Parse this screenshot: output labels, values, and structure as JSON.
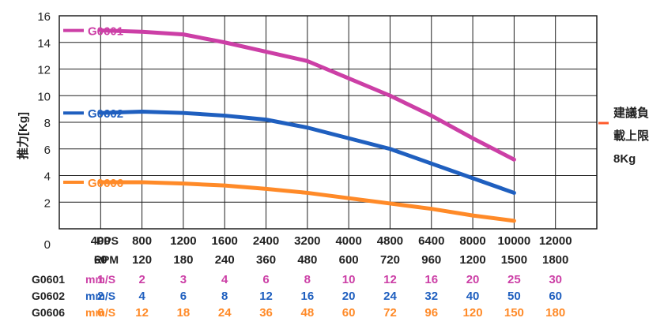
{
  "chart_data": {
    "type": "line",
    "ylabel": "推力[Kg]",
    "ylim": [
      0,
      16
    ],
    "yticks": [
      2,
      4,
      6,
      8,
      10,
      12,
      14,
      16
    ],
    "origin_label": "0",
    "x_row_labels": {
      "pps": "PPS",
      "rpm": "RPM"
    },
    "pps": [
      "400",
      "800",
      "1200",
      "1600",
      "2400",
      "3200",
      "4000",
      "4800",
      "6400",
      "8000",
      "10000",
      "12000"
    ],
    "rpm": [
      "60",
      "120",
      "180",
      "240",
      "360",
      "480",
      "600",
      "720",
      "960",
      "1200",
      "1500",
      "1800"
    ],
    "speed_unit": "mm/S",
    "series": [
      {
        "name": "G0601",
        "color": "#cc3fa6",
        "values": [
          14.9,
          14.8,
          14.6,
          14.0,
          13.3,
          12.6,
          11.3,
          10.0,
          8.5,
          6.8,
          5.2
        ],
        "speed": [
          "1",
          "2",
          "3",
          "4",
          "6",
          "8",
          "10",
          "12",
          "16",
          "20",
          "25",
          "30"
        ]
      },
      {
        "name": "G0602",
        "color": "#1f5fbf",
        "values": [
          8.7,
          8.8,
          8.7,
          8.5,
          8.2,
          7.6,
          6.8,
          6.0,
          4.9,
          3.8,
          2.7
        ],
        "speed": [
          "2",
          "4",
          "6",
          "8",
          "12",
          "16",
          "20",
          "24",
          "32",
          "40",
          "50",
          "60"
        ]
      },
      {
        "name": "G0606",
        "color": "#ff8a28",
        "values": [
          3.5,
          3.5,
          3.4,
          3.25,
          3.0,
          2.7,
          2.3,
          1.9,
          1.5,
          1.0,
          0.6
        ],
        "speed": [
          "6",
          "12",
          "18",
          "24",
          "36",
          "48",
          "60",
          "72",
          "96",
          "120",
          "150",
          "180"
        ]
      }
    ],
    "annotation": {
      "lines": [
        "建議負",
        "載上限",
        "8Kg"
      ],
      "value": 8,
      "color": "#ff5a2a"
    },
    "grid": true
  }
}
